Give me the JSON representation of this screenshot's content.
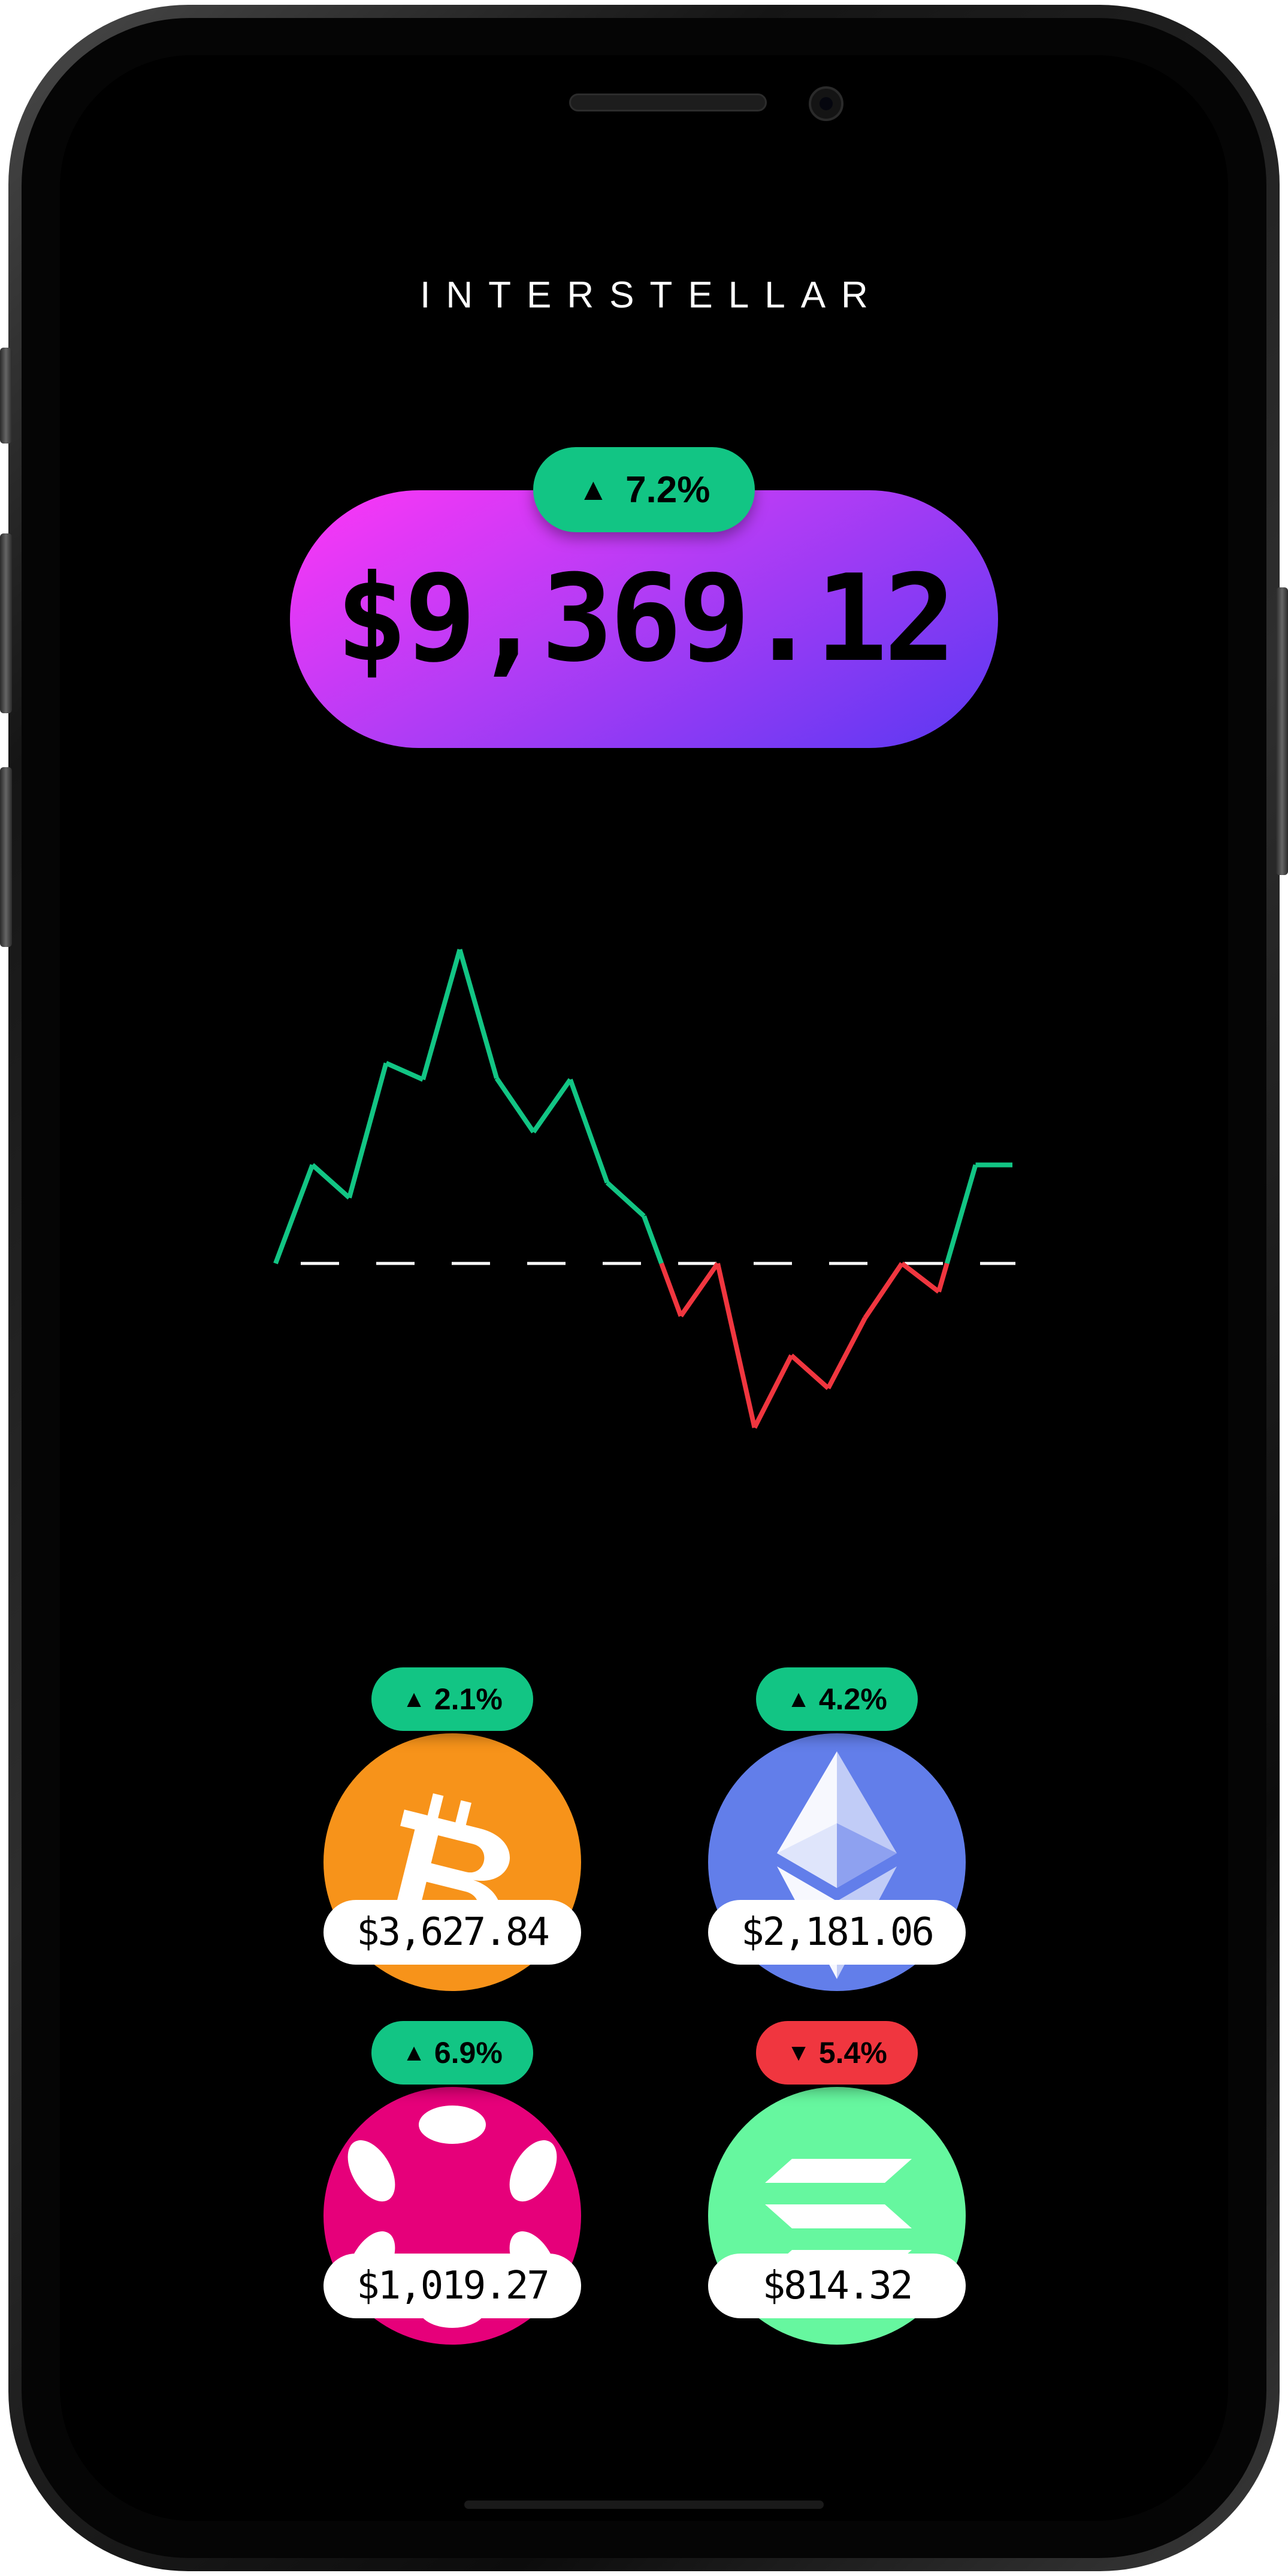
{
  "app": {
    "brand": "INTERSTELLAR"
  },
  "portfolio": {
    "total_value": "$9,369.12",
    "change": "7.2%",
    "direction": "up"
  },
  "chart_data": {
    "type": "line",
    "baseline": 0,
    "values": [
      0.0,
      15.0,
      10.0,
      30.5,
      28.0,
      47.8,
      28.2,
      20.0,
      28.0,
      12.3,
      7.2,
      -8.0,
      0.0,
      -25.0,
      -14.0,
      -19.0,
      -8.3,
      0.0,
      -4.3,
      15.0,
      15.0
    ],
    "ylim": [
      -25,
      48
    ],
    "colors": {
      "above": "#12c584",
      "below": "#f0363f",
      "baseline": "#ffffff"
    },
    "grid": false
  },
  "assets": [
    {
      "name": "bitcoin",
      "icon": "bitcoin-icon",
      "color": "#f7931a",
      "change": "2.1%",
      "direction": "up",
      "price": "$3,627.84"
    },
    {
      "name": "ethereum",
      "icon": "ethereum-icon",
      "color": "#627eea",
      "change": "4.2%",
      "direction": "up",
      "price": "$2,181.06"
    },
    {
      "name": "polkadot",
      "icon": "polkadot-icon",
      "color": "#e6007a",
      "change": "6.9%",
      "direction": "up",
      "price": "$1,019.27"
    },
    {
      "name": "solana",
      "icon": "solana-icon",
      "color": "#66f79f",
      "change": "5.4%",
      "direction": "down",
      "price": "$814.32"
    }
  ],
  "colors": {
    "up": "#12c584",
    "down": "#f0363f",
    "accent_start": "#ff36f7",
    "accent_end": "#5a38f2"
  },
  "arrows": {
    "up": "▲",
    "down": "▼"
  }
}
